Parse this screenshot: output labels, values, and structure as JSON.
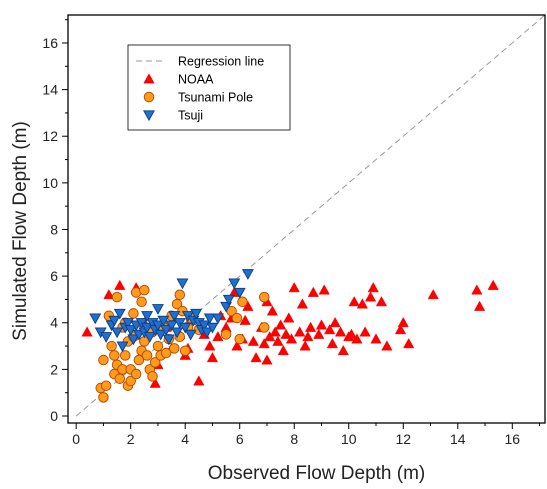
{
  "chart_data": {
    "type": "scatter",
    "xlabel": "Observed Flow Depth (m)",
    "ylabel": "Simulated Flow Depth (m)",
    "xlim": [
      -0.3,
      17.2
    ],
    "ylim": [
      -0.3,
      17.2
    ],
    "xticks": [
      0,
      2,
      4,
      6,
      8,
      10,
      12,
      14,
      16
    ],
    "yticks": [
      0,
      2,
      4,
      6,
      8,
      10,
      12,
      14,
      16
    ],
    "grid": false,
    "legend_position": "top-left",
    "regression_line": {
      "name": "Regression line",
      "x": [
        0,
        17.2
      ],
      "y": [
        0,
        17.2
      ],
      "style": "dashed",
      "color": "#999999"
    },
    "series": [
      {
        "name": "NOAA",
        "marker": "triangle-up",
        "color": "#ff0000",
        "points": [
          [
            0.4,
            3.6
          ],
          [
            1.2,
            5.2
          ],
          [
            1.6,
            5.6
          ],
          [
            2.2,
            5.5
          ],
          [
            2.5,
            4.0
          ],
          [
            2.9,
            1.4
          ],
          [
            3.0,
            2.2
          ],
          [
            3.5,
            2.9
          ],
          [
            3.8,
            3.5
          ],
          [
            4.1,
            2.9
          ],
          [
            4.2,
            4.1
          ],
          [
            4.5,
            1.5
          ],
          [
            4.7,
            3.5
          ],
          [
            5.0,
            2.5
          ],
          [
            5.2,
            3.4
          ],
          [
            5.3,
            4.3
          ],
          [
            5.5,
            3.8
          ],
          [
            5.7,
            4.2
          ],
          [
            5.9,
            3.0
          ],
          [
            6.1,
            3.3
          ],
          [
            6.3,
            4.7
          ],
          [
            6.5,
            3.2
          ],
          [
            6.6,
            2.5
          ],
          [
            6.8,
            3.8
          ],
          [
            6.9,
            3.1
          ],
          [
            7.0,
            4.9
          ],
          [
            7.1,
            3.4
          ],
          [
            7.2,
            4.5
          ],
          [
            7.3,
            3.6
          ],
          [
            7.4,
            3.2
          ],
          [
            7.5,
            3.9
          ],
          [
            7.6,
            2.8
          ],
          [
            7.7,
            3.5
          ],
          [
            7.8,
            4.2
          ],
          [
            7.9,
            3.3
          ],
          [
            8.0,
            5.5
          ],
          [
            8.2,
            3.6
          ],
          [
            8.3,
            4.8
          ],
          [
            8.4,
            3.0
          ],
          [
            8.6,
            3.8
          ],
          [
            8.7,
            5.3
          ],
          [
            8.9,
            3.5
          ],
          [
            9.1,
            5.4
          ],
          [
            9.3,
            3.7
          ],
          [
            9.4,
            3.1
          ],
          [
            9.5,
            4.0
          ],
          [
            9.7,
            3.6
          ],
          [
            9.8,
            2.8
          ],
          [
            10.0,
            3.4
          ],
          [
            10.2,
            4.9
          ],
          [
            10.3,
            3.3
          ],
          [
            10.5,
            4.8
          ],
          [
            10.6,
            3.6
          ],
          [
            10.8,
            5.1
          ],
          [
            11.0,
            3.3
          ],
          [
            11.2,
            4.9
          ],
          [
            11.4,
            3.0
          ],
          [
            11.9,
            3.7
          ],
          [
            12.0,
            4.0
          ],
          [
            12.2,
            3.1
          ],
          [
            13.1,
            5.2
          ],
          [
            14.7,
            5.4
          ],
          [
            14.8,
            4.7
          ],
          [
            15.3,
            5.6
          ],
          [
            10.9,
            5.5
          ],
          [
            10.1,
            3.5
          ],
          [
            9.0,
            3.9
          ],
          [
            8.5,
            3.4
          ],
          [
            7.0,
            2.4
          ],
          [
            6.2,
            4.1
          ],
          [
            5.8,
            5.3
          ],
          [
            4.9,
            3.0
          ],
          [
            4.0,
            2.6
          ],
          [
            3.3,
            3.8
          ]
        ]
      },
      {
        "name": "Tsunami Pole",
        "marker": "circle",
        "color": "#ff9a1a",
        "points": [
          [
            0.9,
            1.2
          ],
          [
            1.0,
            0.8
          ],
          [
            1.0,
            2.4
          ],
          [
            1.1,
            1.3
          ],
          [
            1.2,
            4.3
          ],
          [
            1.3,
            3.0
          ],
          [
            1.4,
            2.6
          ],
          [
            1.4,
            1.8
          ],
          [
            1.5,
            5.1
          ],
          [
            1.5,
            2.2
          ],
          [
            1.6,
            1.6
          ],
          [
            1.7,
            3.8
          ],
          [
            1.7,
            2.0
          ],
          [
            1.8,
            4.0
          ],
          [
            1.8,
            2.6
          ],
          [
            1.9,
            1.3
          ],
          [
            1.9,
            3.2
          ],
          [
            2.0,
            1.5
          ],
          [
            2.0,
            2.0
          ],
          [
            2.1,
            4.4
          ],
          [
            2.1,
            3.4
          ],
          [
            2.2,
            1.8
          ],
          [
            2.2,
            5.3
          ],
          [
            2.3,
            2.4
          ],
          [
            2.4,
            2.8
          ],
          [
            2.4,
            4.9
          ],
          [
            2.5,
            5.4
          ],
          [
            2.5,
            3.2
          ],
          [
            2.6,
            2.6
          ],
          [
            2.7,
            2.0
          ],
          [
            2.8,
            1.7
          ],
          [
            2.8,
            3.6
          ],
          [
            2.9,
            2.3
          ],
          [
            3.0,
            3.0
          ],
          [
            3.1,
            2.6
          ],
          [
            3.2,
            3.8
          ],
          [
            3.3,
            2.7
          ],
          [
            3.4,
            3.3
          ],
          [
            3.5,
            4.3
          ],
          [
            3.6,
            2.9
          ],
          [
            3.7,
            4.8
          ],
          [
            3.8,
            3.4
          ],
          [
            3.8,
            5.2
          ],
          [
            3.9,
            4.5
          ],
          [
            4.0,
            2.8
          ],
          [
            4.1,
            3.8
          ],
          [
            4.2,
            4.2
          ],
          [
            4.5,
            3.7
          ],
          [
            5.5,
            3.5
          ],
          [
            5.7,
            4.5
          ],
          [
            5.9,
            4.2
          ],
          [
            6.0,
            3.3
          ],
          [
            6.1,
            4.9
          ],
          [
            6.9,
            3.8
          ],
          [
            6.9,
            5.1
          ]
        ]
      },
      {
        "name": "Tsuji",
        "marker": "triangle-down",
        "color": "#1f6fd1",
        "points": [
          [
            0.7,
            4.2
          ],
          [
            0.9,
            3.6
          ],
          [
            1.1,
            3.4
          ],
          [
            1.3,
            3.9
          ],
          [
            1.4,
            4.1
          ],
          [
            1.5,
            3.6
          ],
          [
            1.6,
            4.4
          ],
          [
            1.7,
            3.0
          ],
          [
            1.8,
            3.8
          ],
          [
            1.9,
            4.0
          ],
          [
            2.0,
            3.7
          ],
          [
            2.1,
            3.3
          ],
          [
            2.2,
            3.9
          ],
          [
            2.3,
            3.5
          ],
          [
            2.4,
            4.0
          ],
          [
            2.5,
            3.6
          ],
          [
            2.6,
            3.8
          ],
          [
            2.7,
            3.4
          ],
          [
            2.8,
            4.0
          ],
          [
            2.9,
            3.7
          ],
          [
            3.0,
            3.9
          ],
          [
            3.1,
            3.5
          ],
          [
            3.2,
            4.1
          ],
          [
            3.3,
            3.7
          ],
          [
            3.4,
            3.3
          ],
          [
            3.5,
            3.9
          ],
          [
            3.6,
            4.3
          ],
          [
            3.7,
            3.6
          ],
          [
            3.8,
            4.0
          ],
          [
            3.9,
            5.7
          ],
          [
            4.0,
            3.8
          ],
          [
            4.1,
            4.3
          ],
          [
            4.2,
            3.5
          ],
          [
            4.3,
            4.1
          ],
          [
            4.4,
            4.4
          ],
          [
            4.5,
            4.0
          ],
          [
            4.6,
            3.7
          ],
          [
            4.7,
            3.9
          ],
          [
            4.8,
            3.6
          ],
          [
            4.9,
            4.2
          ],
          [
            5.0,
            3.8
          ],
          [
            5.2,
            4.2
          ],
          [
            5.5,
            4.7
          ],
          [
            5.6,
            5.0
          ],
          [
            5.8,
            5.7
          ],
          [
            6.0,
            5.3
          ],
          [
            6.3,
            6.1
          ],
          [
            3.0,
            4.6
          ],
          [
            2.6,
            4.3
          ]
        ]
      }
    ]
  }
}
